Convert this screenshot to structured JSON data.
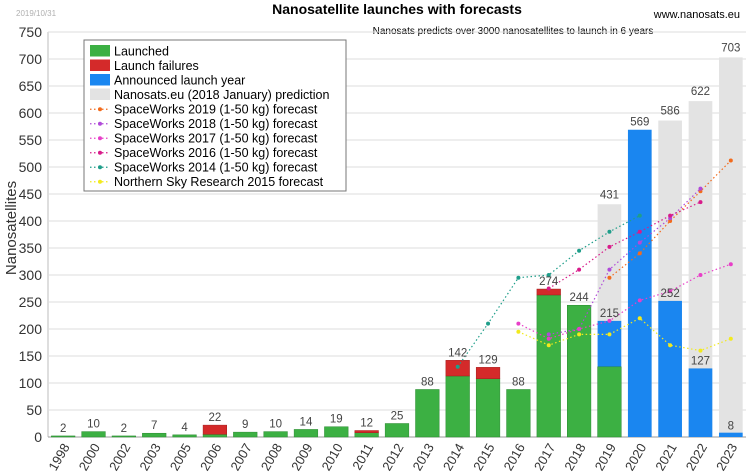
{
  "chart_data": {
    "type": "bar",
    "title": "Nanosatellite launches with forecasts",
    "date_stamp": "2019/10/31",
    "source": "www.nanosats.eu",
    "annotation": "Nanosats predicts over 3000 nanosatellites to launch in 6 years",
    "ylabel": "Nanosatellites",
    "ylim": [
      0,
      750
    ],
    "yticks": [
      0,
      50,
      100,
      150,
      200,
      250,
      300,
      350,
      400,
      450,
      500,
      550,
      600,
      650,
      700,
      750
    ],
    "grid": "horizontal",
    "legend_position": "top-left",
    "categories": [
      "1998",
      "2000",
      "2002",
      "2003",
      "2005",
      "2006",
      "2007",
      "2008",
      "2009",
      "2010",
      "2011",
      "2012",
      "2013",
      "2014",
      "2015",
      "2016",
      "2017",
      "2018",
      "2019",
      "2020",
      "2021",
      "2022",
      "2023"
    ],
    "launched": [
      2,
      10,
      2,
      7,
      4,
      5,
      9,
      10,
      14,
      19,
      8,
      25,
      88,
      113,
      108,
      88,
      263,
      244,
      130,
      0,
      0,
      0,
      0
    ],
    "failures": [
      0,
      0,
      0,
      0,
      0,
      17,
      0,
      0,
      0,
      0,
      4,
      0,
      0,
      29,
      21,
      0,
      11,
      0,
      0,
      0,
      0,
      0,
      0
    ],
    "announced": [
      0,
      0,
      0,
      0,
      0,
      0,
      0,
      0,
      0,
      0,
      0,
      0,
      0,
      0,
      0,
      0,
      0,
      0,
      215,
      569,
      252,
      127,
      8
    ],
    "prediction": [
      0,
      0,
      0,
      0,
      0,
      0,
      0,
      0,
      0,
      0,
      0,
      0,
      0,
      0,
      0,
      0,
      0,
      0,
      431,
      545,
      586,
      622,
      703
    ],
    "labels": [
      "2",
      "10",
      "2",
      "7",
      "4",
      "22",
      "9",
      "10",
      "14",
      "19",
      "12",
      "25",
      "88",
      "142",
      "129",
      "88",
      "274",
      "244",
      "215",
      "569",
      "252",
      "127",
      "8"
    ],
    "prediction_labels": [
      "",
      "",
      "",
      "",
      "",
      "",
      "",
      "",
      "",
      "",
      "",
      "",
      "",
      "",
      "",
      "",
      "",
      "",
      "431",
      "",
      "586",
      "622",
      "703"
    ],
    "colors": {
      "launched": "#3cb043",
      "failures": "#d42a2a",
      "announced": "#1a86f0",
      "prediction": "#e3e3e3"
    },
    "legend": [
      {
        "label": "Launched",
        "key": "launched",
        "style": "box"
      },
      {
        "label": "Launch failures",
        "key": "failures",
        "style": "box"
      },
      {
        "label": "Announced launch year",
        "key": "announced",
        "style": "box"
      },
      {
        "label": "Nanosats.eu (2018 January) prediction",
        "key": "prediction",
        "style": "box"
      },
      {
        "label": "SpaceWorks 2019 (1-50 kg) forecast",
        "key": "sw2019",
        "style": "dot"
      },
      {
        "label": "SpaceWorks 2018 (1-50 kg) forecast",
        "key": "sw2018",
        "style": "dot"
      },
      {
        "label": "SpaceWorks 2017 (1-50 kg) forecast",
        "key": "sw2017",
        "style": "dot"
      },
      {
        "label": "SpaceWorks 2016 (1-50 kg) forecast",
        "key": "sw2016",
        "style": "dot"
      },
      {
        "label": "SpaceWorks 2014 (1-50 kg) forecast",
        "key": "sw2014",
        "style": "dot"
      },
      {
        "label": "Northern Sky Research 2015 forecast",
        "key": "nsr2015",
        "style": "dot"
      }
    ],
    "forecasts": [
      {
        "name": "SpaceWorks 2019 (1-50 kg) forecast",
        "color": "#f26b1d",
        "x": [
          "2019",
          "2020",
          "2021",
          "2022",
          "2023"
        ],
        "values": [
          295,
          340,
          400,
          455,
          512
        ]
      },
      {
        "name": "SpaceWorks 2018 (1-50 kg) forecast",
        "color": "#b04ad9",
        "x": [
          "2017",
          "2018",
          "2019",
          "2020",
          "2021",
          "2022"
        ],
        "values": [
          190,
          200,
          310,
          360,
          405,
          460
        ]
      },
      {
        "name": "SpaceWorks 2017 (1-50 kg) forecast",
        "color": "#e83fc8",
        "x": [
          "2016",
          "2017",
          "2018",
          "2019",
          "2020",
          "2021",
          "2022",
          "2023"
        ],
        "values": [
          210,
          182,
          200,
          215,
          253,
          270,
          300,
          320
        ]
      },
      {
        "name": "SpaceWorks 2016 (1-50 kg) forecast",
        "color": "#d81b8a",
        "x": [
          "2017",
          "2018",
          "2019",
          "2020",
          "2021",
          "2022"
        ],
        "values": [
          275,
          310,
          352,
          380,
          410,
          435
        ]
      },
      {
        "name": "SpaceWorks 2014 (1-50 kg) forecast",
        "color": "#1f9e8a",
        "x": [
          "2014",
          "2015",
          "2016",
          "2017",
          "2018",
          "2019",
          "2020"
        ],
        "values": [
          130,
          210,
          295,
          300,
          345,
          380,
          410
        ]
      },
      {
        "name": "Northern Sky Research 2015 forecast",
        "color": "#f2ea1d",
        "x": [
          "2016",
          "2017",
          "2018",
          "2019",
          "2020",
          "2021",
          "2022",
          "2023"
        ],
        "values": [
          195,
          170,
          190,
          190,
          220,
          170,
          160,
          182
        ]
      }
    ]
  }
}
